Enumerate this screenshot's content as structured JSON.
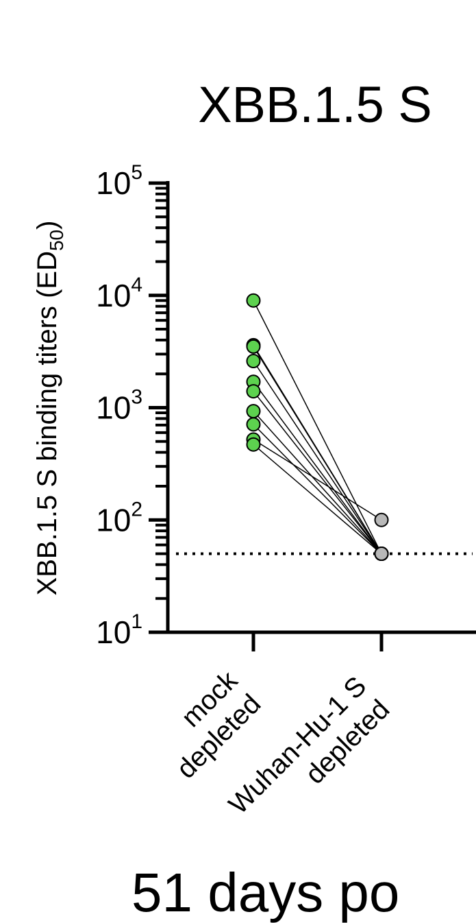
{
  "chart_data": {
    "type": "scatter",
    "title": "XBB.1.5 S",
    "ylabel_main": "XBB.1.5 S binding titers (ED",
    "ylabel_sub": "50",
    "ylabel_close": ")",
    "yscale": "log",
    "ylim": [
      10,
      100000
    ],
    "yticks": [
      {
        "base": "10",
        "exp": "1",
        "value": 10
      },
      {
        "base": "10",
        "exp": "2",
        "value": 100
      },
      {
        "base": "10",
        "exp": "3",
        "value": 1000
      },
      {
        "base": "10",
        "exp": "4",
        "value": 10000
      },
      {
        "base": "10",
        "exp": "5",
        "value": 100000
      }
    ],
    "categories": [
      {
        "lines": [
          "mock",
          "depleted"
        ]
      },
      {
        "lines": [
          "Wuhan-Hu-1 S",
          "depleted"
        ]
      }
    ],
    "detection_limit": 50,
    "pairs": [
      {
        "mock": 9000,
        "depleted": 50
      },
      {
        "mock": 3600,
        "depleted": 50
      },
      {
        "mock": 3500,
        "depleted": 50
      },
      {
        "mock": 2600,
        "depleted": 50
      },
      {
        "mock": 1700,
        "depleted": 50
      },
      {
        "mock": 1400,
        "depleted": 50
      },
      {
        "mock": 930,
        "depleted": 50
      },
      {
        "mock": 710,
        "depleted": 50
      },
      {
        "mock": 520,
        "depleted": 100
      },
      {
        "mock": 470,
        "depleted": 50
      }
    ],
    "colors": {
      "mock": "#5dd24f",
      "depleted": "#b8b8b8",
      "line": "#000000"
    }
  },
  "footer_text": "51 days po"
}
